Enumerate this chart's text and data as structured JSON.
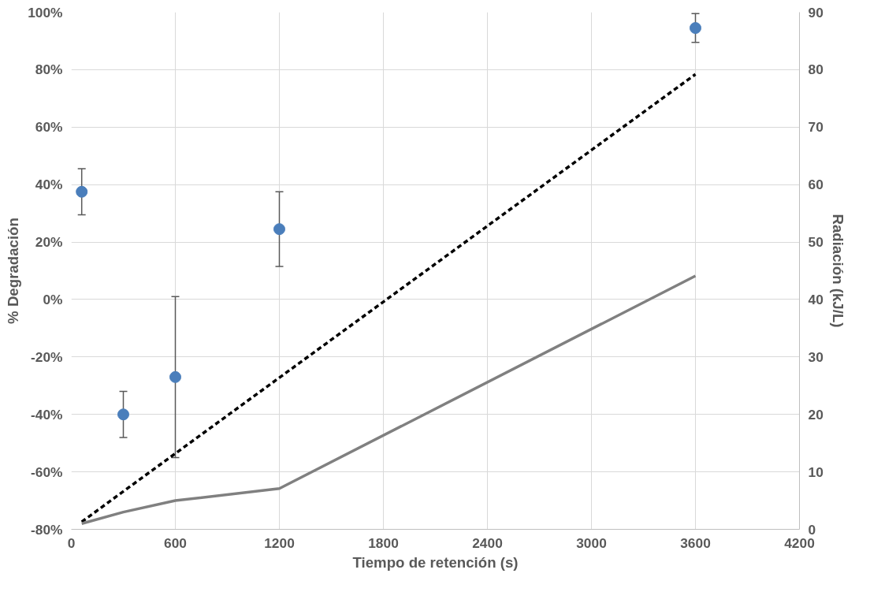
{
  "chart_data": {
    "type": "scatter",
    "xlabel": "Tiempo de retención (s)",
    "ylabel": "% Degradación",
    "y2label": "Radiación (kJ/L)",
    "x": [
      60,
      300,
      600,
      1200,
      3600
    ],
    "xlim": [
      0,
      4200
    ],
    "xticks": [
      0,
      600,
      1200,
      1800,
      2400,
      3000,
      3600,
      4200
    ],
    "ylim": [
      -80,
      100
    ],
    "yticks": [
      {
        "value": -80,
        "label": "-80%"
      },
      {
        "value": -60,
        "label": "-60%"
      },
      {
        "value": -40,
        "label": "-40%"
      },
      {
        "value": -20,
        "label": "-20%"
      },
      {
        "value": 0,
        "label": "0%"
      },
      {
        "value": 20,
        "label": "20%"
      },
      {
        "value": 40,
        "label": "40%"
      },
      {
        "value": 60,
        "label": "60%"
      },
      {
        "value": 80,
        "label": "80%"
      },
      {
        "value": 100,
        "label": "100%"
      }
    ],
    "y2lim": [
      0,
      90
    ],
    "y2ticks": [
      0,
      10,
      20,
      30,
      40,
      50,
      60,
      70,
      80,
      90
    ],
    "grid": true,
    "series": [
      {
        "marker": "circle",
        "color": "#4a7ebb",
        "values": [
          37.5,
          -40,
          -27,
          24.5,
          94.5
        ],
        "errors": [
          8,
          8,
          28,
          13,
          5
        ]
      },
      {
        "type": "line",
        "axis": "y2",
        "line_style": "dashed",
        "color": "#000000",
        "values": [
          1.3,
          6.6,
          13.2,
          26.4,
          79.2
        ]
      },
      {
        "type": "line",
        "axis": "y2",
        "line_style": "solid",
        "color": "#808080",
        "values": [
          1.0,
          3.0,
          5.0,
          7.1,
          44.1
        ]
      }
    ]
  }
}
